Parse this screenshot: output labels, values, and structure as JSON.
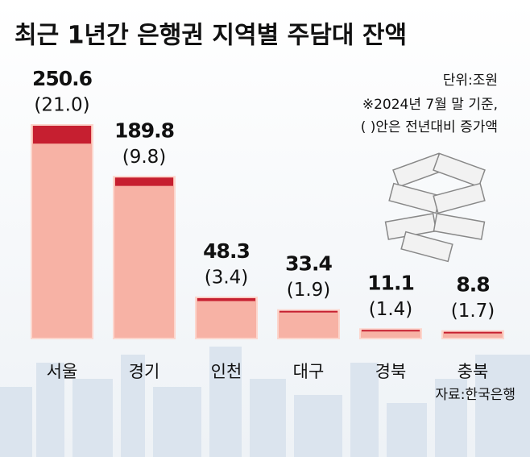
{
  "chart_data": {
    "type": "bar",
    "title": "최근 1년간 은행권 지역별 주담대 잔액",
    "unit": "단위:조원",
    "notes": [
      "※2024년 7월 말 기준,",
      "(  )안은 전년대비 증가액"
    ],
    "source": "자료:한국은행",
    "categories": [
      "서울",
      "경기",
      "인천",
      "대구",
      "경북",
      "충북"
    ],
    "values": [
      250.6,
      189.8,
      48.3,
      33.4,
      11.1,
      8.8
    ],
    "color": "#f7b2a5",
    "increases": {
      "values": [
        21.0,
        9.8,
        3.4,
        1.9,
        1.4,
        1.7
      ],
      "value_labels": [
        "(21.0)",
        "(9.8)",
        "(3.4)",
        "(1.9)",
        "(1.4)",
        "(1.7)"
      ],
      "color": "#c61f30"
    }
  }
}
